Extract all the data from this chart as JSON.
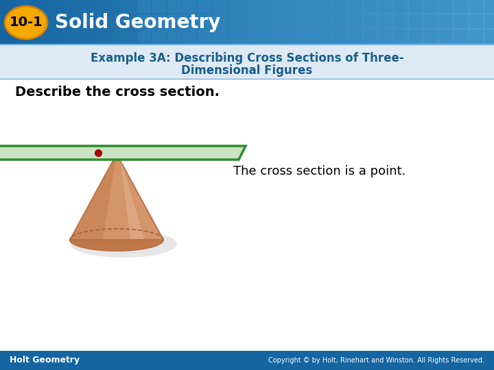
{
  "bg_color": "#ffffff",
  "header_grad_left": "#1565a0",
  "header_grad_right": "#4a9fd4",
  "header_tile_color": "#2e7bbf",
  "header_text": "Solid Geometry",
  "badge_text": "10-1",
  "badge_bg": "#f5a800",
  "badge_border": "#d48000",
  "subtitle_bg": "#ddeaf5",
  "subtitle_text_line1": "Example 3A: Describing Cross Sections of Three-",
  "subtitle_text_line2": "Dimensional Figures",
  "subtitle_color": "#1a5e8a",
  "body_text": "Describe the cross section.",
  "answer_text": "The cross section is a point.",
  "footer_text_left": "Holt Geometry",
  "footer_text_right": "Copyright © by Holt, Rinehart and Winston. All Rights Reserved.",
  "footer_bg": "#1565a0",
  "cone_color": "#d4956a",
  "cone_edge": "#b87248",
  "cone_light": "#e8b896",
  "cone_dark": "#c07848",
  "cone_shadow_color": "#cccccc",
  "plane_fill": "#c8e4c0",
  "plane_border": "#2e8b2e",
  "point_color": "#aa0000",
  "dashed_color": "#a06040"
}
